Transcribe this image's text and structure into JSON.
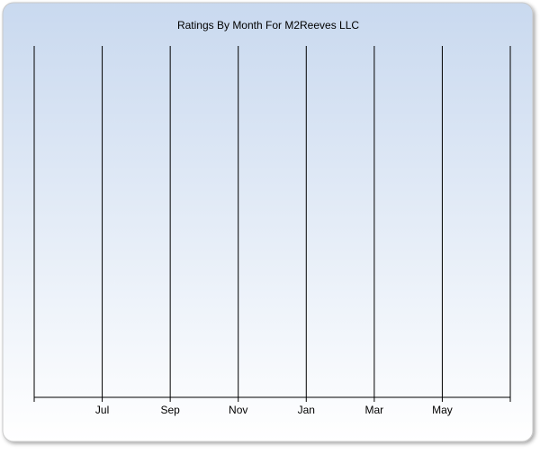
{
  "chart_data": {
    "type": "line",
    "title": "Ratings By Month For M2Reeves LLC",
    "categories": [
      null,
      "Jul",
      "Sep",
      "Nov",
      "Jan",
      "Mar",
      "May",
      null
    ],
    "series": [],
    "grid": true
  }
}
